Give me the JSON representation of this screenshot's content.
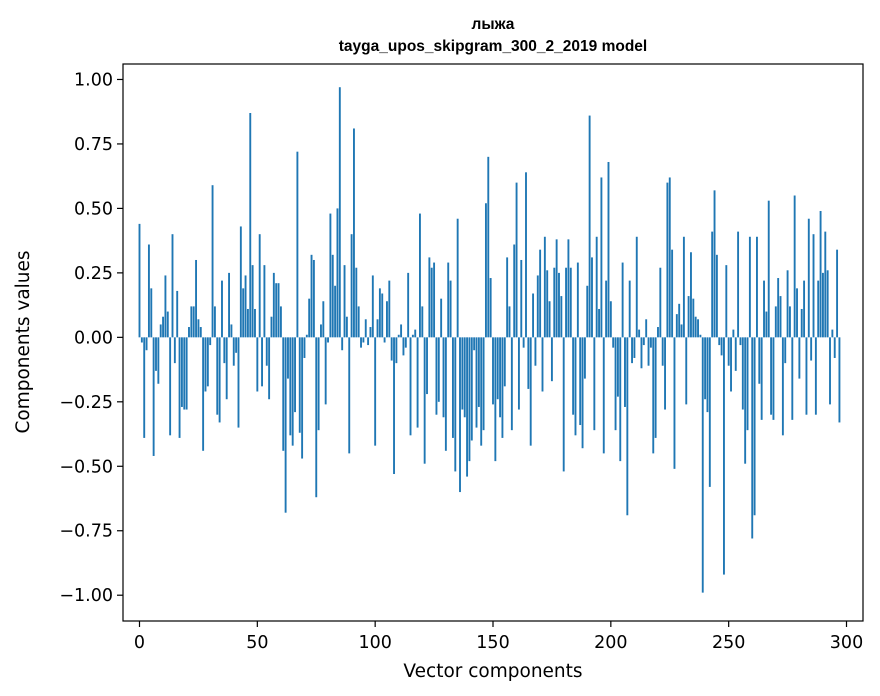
{
  "chart_data": {
    "type": "bar",
    "title_lines": [
      "лыжа",
      "tayga_upos_skipgram_300_2_2019 model"
    ],
    "xlabel": "Vector components",
    "ylabel": "Components values",
    "xlim": [
      -7,
      307
    ],
    "ylim": [
      -1.1,
      1.06
    ],
    "xticks": [
      0,
      50,
      100,
      150,
      200,
      250,
      300
    ],
    "xtick_labels": [
      "0",
      "50",
      "100",
      "150",
      "200",
      "250",
      "300"
    ],
    "yticks": [
      1.0,
      0.75,
      0.5,
      0.25,
      0.0,
      -0.25,
      -0.5,
      -0.75,
      -1.0
    ],
    "ytick_labels": [
      "1.00",
      "0.75",
      "0.50",
      "0.25",
      "0.00",
      "−0.25",
      "−0.50",
      "−0.75",
      "−1.00"
    ],
    "grid": false,
    "bar_color": "#1f77b4",
    "values": [
      0.44,
      -0.02,
      -0.39,
      -0.05,
      0.36,
      0.19,
      -0.46,
      -0.13,
      -0.18,
      0.05,
      0.08,
      0.24,
      0.1,
      -0.38,
      0.4,
      -0.1,
      0.18,
      -0.39,
      -0.27,
      -0.28,
      -0.28,
      0.04,
      0.12,
      0.12,
      0.3,
      0.07,
      0.04,
      -0.44,
      -0.21,
      -0.19,
      -0.03,
      0.59,
      0.12,
      -0.3,
      -0.33,
      0.22,
      -0.1,
      -0.24,
      0.25,
      0.05,
      -0.11,
      -0.06,
      -0.35,
      0.43,
      0.19,
      0.24,
      0.11,
      0.87,
      0.28,
      0.11,
      -0.21,
      0.4,
      -0.19,
      0.28,
      -0.11,
      -0.24,
      0.08,
      0.25,
      0.21,
      0.21,
      0.12,
      -0.44,
      -0.68,
      -0.16,
      -0.38,
      -0.42,
      -0.29,
      0.72,
      -0.37,
      -0.47,
      -0.08,
      0.01,
      0.15,
      0.32,
      0.3,
      -0.62,
      -0.36,
      0.05,
      0.14,
      -0.26,
      -0.02,
      0.48,
      0.32,
      0.2,
      0.5,
      0.97,
      -0.05,
      0.28,
      0.08,
      -0.45,
      0.4,
      0.81,
      0.27,
      0.12,
      -0.04,
      -0.02,
      0.07,
      -0.03,
      0.04,
      0.24,
      -0.42,
      0.07,
      0.19,
      0.17,
      -0.02,
      0.14,
      0.22,
      -0.09,
      -0.53,
      -0.1,
      0.01,
      0.05,
      -0.07,
      -0.04,
      0.25,
      -0.38,
      0.01,
      0.03,
      -0.35,
      0.48,
      0.12,
      -0.49,
      -0.22,
      0.31,
      0.27,
      0.29,
      -0.3,
      -0.25,
      0.15,
      -0.31,
      -0.44,
      0.29,
      0.22,
      -0.39,
      -0.52,
      0.46,
      -0.6,
      -0.28,
      -0.31,
      -0.54,
      -0.48,
      -0.4,
      -0.05,
      -0.35,
      -0.27,
      -0.42,
      -0.36,
      0.52,
      0.7,
      0.23,
      -0.26,
      -0.48,
      -0.24,
      -0.31,
      -0.39,
      -0.19,
      0.31,
      0.12,
      -0.36,
      0.36,
      0.6,
      -0.28,
      0.3,
      -0.04,
      0.64,
      -0.2,
      -0.42,
      0.17,
      -0.11,
      0.24,
      0.34,
      -0.21,
      0.39,
      0.26,
      0.14,
      -0.17,
      0.27,
      0.38,
      0.25,
      0.16,
      -0.52,
      0.27,
      0.38,
      0.27,
      -0.3,
      -0.38,
      0.29,
      -0.34,
      -0.43,
      -0.16,
      0.2,
      0.86,
      0.31,
      -0.36,
      0.39,
      0.11,
      0.62,
      -0.45,
      0.22,
      0.68,
      0.14,
      -0.04,
      -0.36,
      -0.23,
      -0.48,
      0.29,
      -0.27,
      -0.69,
      0.22,
      -0.1,
      -0.08,
      0.39,
      0.03,
      -0.12,
      -0.03,
      0.07,
      -0.11,
      -0.04,
      -0.45,
      -0.39,
      0.04,
      0.27,
      -0.11,
      -0.28,
      0.6,
      0.62,
      0.34,
      -0.51,
      0.09,
      0.13,
      0.05,
      0.39,
      -0.26,
      0.16,
      0.33,
      0.15,
      0.08,
      0.07,
      0.01,
      -0.99,
      -0.24,
      -0.29,
      -0.58,
      0.41,
      0.57,
      0.32,
      -0.03,
      -0.07,
      -0.92,
      0.28,
      -0.11,
      -0.21,
      0.03,
      -0.13,
      0.41,
      -0.03,
      -0.28,
      -0.49,
      -0.36,
      0.39,
      -0.78,
      -0.69,
      0.39,
      -0.18,
      -0.32,
      0.22,
      0.1,
      0.53,
      -0.3,
      -0.32,
      0.12,
      0.23,
      0.16,
      -0.38,
      -0.1,
      0.26,
      0.12,
      -0.32,
      0.55,
      0.19,
      -0.16,
      0.11,
      0.22,
      -0.3,
      0.46,
      -0.09,
      0.4,
      -0.3,
      0.22,
      0.49,
      0.25,
      0.41,
      0.26,
      -0.26,
      0.03,
      -0.08,
      0.34,
      -0.33
    ]
  }
}
